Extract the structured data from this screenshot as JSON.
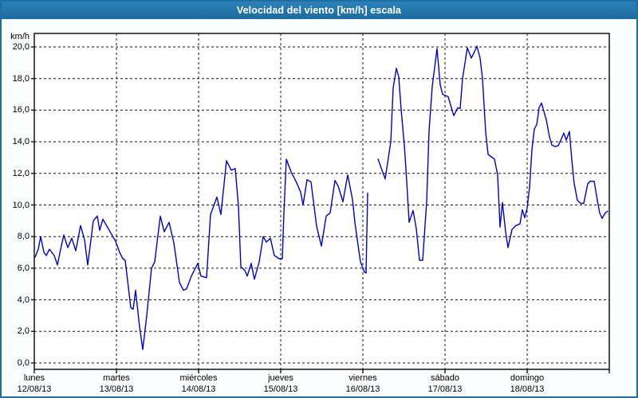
{
  "window": {
    "title": "Velocidad del viento [km/h] escala",
    "title_bar_color": "#1b6ba1",
    "border_color": "#1e6fa4",
    "background_color": "#fbfdfe"
  },
  "chart_data": {
    "type": "line",
    "title": "Velocidad del viento [km/h] escala",
    "ylabel": "km/h",
    "xlabel": "",
    "grid": true,
    "legend": "none",
    "line_color": "#0000cc",
    "ylim": [
      0,
      21
    ],
    "x_range_days": [
      0,
      7
    ],
    "y_axis": {
      "ticks": [
        {
          "value": 0,
          "label": "0,0"
        },
        {
          "value": 2,
          "label": "2,0"
        },
        {
          "value": 4,
          "label": "4,0"
        },
        {
          "value": 6,
          "label": "6,0"
        },
        {
          "value": 8,
          "label": "8,0"
        },
        {
          "value": 10,
          "label": "10,0"
        },
        {
          "value": 12,
          "label": "12,0"
        },
        {
          "value": 14,
          "label": "14,0"
        },
        {
          "value": 16,
          "label": "16,0"
        },
        {
          "value": 18,
          "label": "18,0"
        },
        {
          "value": 20,
          "label": "20,0"
        }
      ]
    },
    "x_axis": {
      "days": [
        {
          "name": "lunes",
          "date": "12/08/13"
        },
        {
          "name": "martes",
          "date": "13/08/13"
        },
        {
          "name": "miércoles",
          "date": "14/08/13"
        },
        {
          "name": "jueves",
          "date": "15/08/13"
        },
        {
          "name": "viernes",
          "date": "16/08/13"
        },
        {
          "name": "sábado",
          "date": "17/08/13"
        },
        {
          "name": "domingo",
          "date": "18/08/13"
        }
      ]
    },
    "series": [
      {
        "points": [
          [
            0.01,
            6.7
          ],
          [
            0.049,
            7.2
          ],
          [
            0.078,
            8.0
          ],
          [
            0.117,
            7.0
          ],
          [
            0.146,
            6.8
          ],
          [
            0.184,
            7.2
          ],
          [
            0.243,
            6.8
          ],
          [
            0.282,
            6.2
          ],
          [
            0.32,
            7.2
          ],
          [
            0.359,
            8.1
          ],
          [
            0.408,
            7.3
          ],
          [
            0.456,
            7.9
          ],
          [
            0.505,
            7.1
          ],
          [
            0.563,
            8.7
          ],
          [
            0.612,
            7.8
          ],
          [
            0.65,
            6.2
          ],
          [
            0.689,
            7.8
          ],
          [
            0.718,
            9.0
          ],
          [
            0.767,
            9.3
          ],
          [
            0.796,
            8.4
          ],
          [
            0.835,
            9.1
          ],
          [
            0.913,
            8.4
          ],
          [
            0.99,
            7.7
          ],
          [
            1.039,
            7.0
          ],
          [
            1.078,
            6.6
          ],
          [
            1.107,
            6.5
          ],
          [
            1.175,
            3.5
          ],
          [
            1.204,
            3.4
          ],
          [
            1.233,
            4.6
          ],
          [
            1.282,
            2.3
          ],
          [
            1.32,
            0.85
          ],
          [
            1.369,
            3.0
          ],
          [
            1.427,
            6.0
          ],
          [
            1.466,
            6.4
          ],
          [
            1.534,
            9.3
          ],
          [
            1.583,
            8.3
          ],
          [
            1.641,
            8.9
          ],
          [
            1.699,
            7.6
          ],
          [
            1.767,
            5.1
          ],
          [
            1.816,
            4.6
          ],
          [
            1.854,
            4.7
          ],
          [
            1.913,
            5.5
          ],
          [
            1.99,
            6.3
          ],
          [
            2.029,
            5.5
          ],
          [
            2.097,
            5.4
          ],
          [
            2.146,
            9.4
          ],
          [
            2.223,
            10.5
          ],
          [
            2.272,
            9.4
          ],
          [
            2.34,
            12.8
          ],
          [
            2.398,
            12.2
          ],
          [
            2.447,
            12.3
          ],
          [
            2.485,
            9.9
          ],
          [
            2.515,
            6.1
          ],
          [
            2.563,
            5.85
          ],
          [
            2.592,
            5.5
          ],
          [
            2.641,
            6.3
          ],
          [
            2.68,
            5.3
          ],
          [
            2.738,
            6.4
          ],
          [
            2.786,
            8.0
          ],
          [
            2.825,
            7.65
          ],
          [
            2.874,
            7.9
          ],
          [
            2.922,
            6.8
          ],
          [
            2.981,
            6.6
          ],
          [
            3.019,
            6.6
          ],
          [
            3.039,
            9.5
          ],
          [
            3.068,
            12.9
          ],
          [
            3.126,
            12.1
          ],
          [
            3.194,
            11.4
          ],
          [
            3.243,
            10.8
          ],
          [
            3.272,
            10.0
          ],
          [
            3.32,
            11.6
          ],
          [
            3.369,
            11.45
          ],
          [
            3.437,
            8.65
          ],
          [
            3.495,
            7.4
          ],
          [
            3.553,
            9.3
          ],
          [
            3.602,
            9.5
          ],
          [
            3.66,
            11.55
          ],
          [
            3.699,
            11.2
          ],
          [
            3.757,
            10.2
          ],
          [
            3.816,
            11.9
          ],
          [
            3.874,
            10.35
          ],
          [
            3.903,
            8.9
          ],
          [
            3.942,
            7.45
          ],
          [
            3.971,
            6.4
          ],
          [
            4.019,
            5.75
          ],
          [
            4.039,
            5.7
          ],
          [
            4.058,
            10.75
          ],
          null,
          [
            4.184,
            12.9
          ],
          [
            4.233,
            12.2
          ],
          [
            4.272,
            11.65
          ],
          [
            4.34,
            14.0
          ],
          [
            4.369,
            17.4
          ],
          [
            4.408,
            18.65
          ],
          [
            4.437,
            18.1
          ],
          [
            4.466,
            16.05
          ],
          [
            4.505,
            13.8
          ],
          [
            4.534,
            11.5
          ],
          [
            4.563,
            8.9
          ],
          [
            4.612,
            9.65
          ],
          [
            4.65,
            8.5
          ],
          [
            4.689,
            6.5
          ],
          [
            4.728,
            6.5
          ],
          [
            4.777,
            10.2
          ],
          [
            4.806,
            14.7
          ],
          [
            4.845,
            17.5
          ],
          [
            4.903,
            19.9
          ],
          [
            4.942,
            17.6
          ],
          [
            4.971,
            17.0
          ],
          [
            5.039,
            16.85
          ],
          [
            5.107,
            15.65
          ],
          [
            5.155,
            16.15
          ],
          [
            5.184,
            16.1
          ],
          [
            5.214,
            18.0
          ],
          [
            5.272,
            19.95
          ],
          [
            5.32,
            19.3
          ],
          [
            5.35,
            19.6
          ],
          [
            5.388,
            20.05
          ],
          [
            5.427,
            19.3
          ],
          [
            5.456,
            18.0
          ],
          [
            5.476,
            16.3
          ],
          [
            5.495,
            14.6
          ],
          [
            5.524,
            13.2
          ],
          [
            5.602,
            12.9
          ],
          [
            5.641,
            11.9
          ],
          [
            5.67,
            8.6
          ],
          [
            5.699,
            10.15
          ],
          [
            5.738,
            8.3
          ],
          [
            5.767,
            7.3
          ],
          [
            5.816,
            8.45
          ],
          [
            5.864,
            8.7
          ],
          [
            5.913,
            8.8
          ],
          [
            5.942,
            9.7
          ],
          [
            5.971,
            9.2
          ],
          [
            6.0,
            9.8
          ],
          [
            6.029,
            11.1
          ],
          [
            6.058,
            13.5
          ],
          [
            6.087,
            14.8
          ],
          [
            6.117,
            15.1
          ],
          [
            6.146,
            16.15
          ],
          [
            6.175,
            16.45
          ],
          [
            6.233,
            15.4
          ],
          [
            6.272,
            14.3
          ],
          [
            6.301,
            13.8
          ],
          [
            6.34,
            13.7
          ],
          [
            6.379,
            13.75
          ],
          [
            6.417,
            14.2
          ],
          [
            6.447,
            14.55
          ],
          [
            6.476,
            14.1
          ],
          [
            6.515,
            14.65
          ],
          [
            6.544,
            12.85
          ],
          [
            6.573,
            11.35
          ],
          [
            6.612,
            10.3
          ],
          [
            6.65,
            10.1
          ],
          [
            6.689,
            10.1
          ],
          [
            6.738,
            11.35
          ],
          [
            6.767,
            11.5
          ],
          [
            6.816,
            11.5
          ],
          [
            6.854,
            10.3
          ],
          [
            6.883,
            9.5
          ],
          [
            6.913,
            9.15
          ],
          [
            6.951,
            9.5
          ],
          [
            6.981,
            9.6
          ]
        ]
      }
    ]
  }
}
